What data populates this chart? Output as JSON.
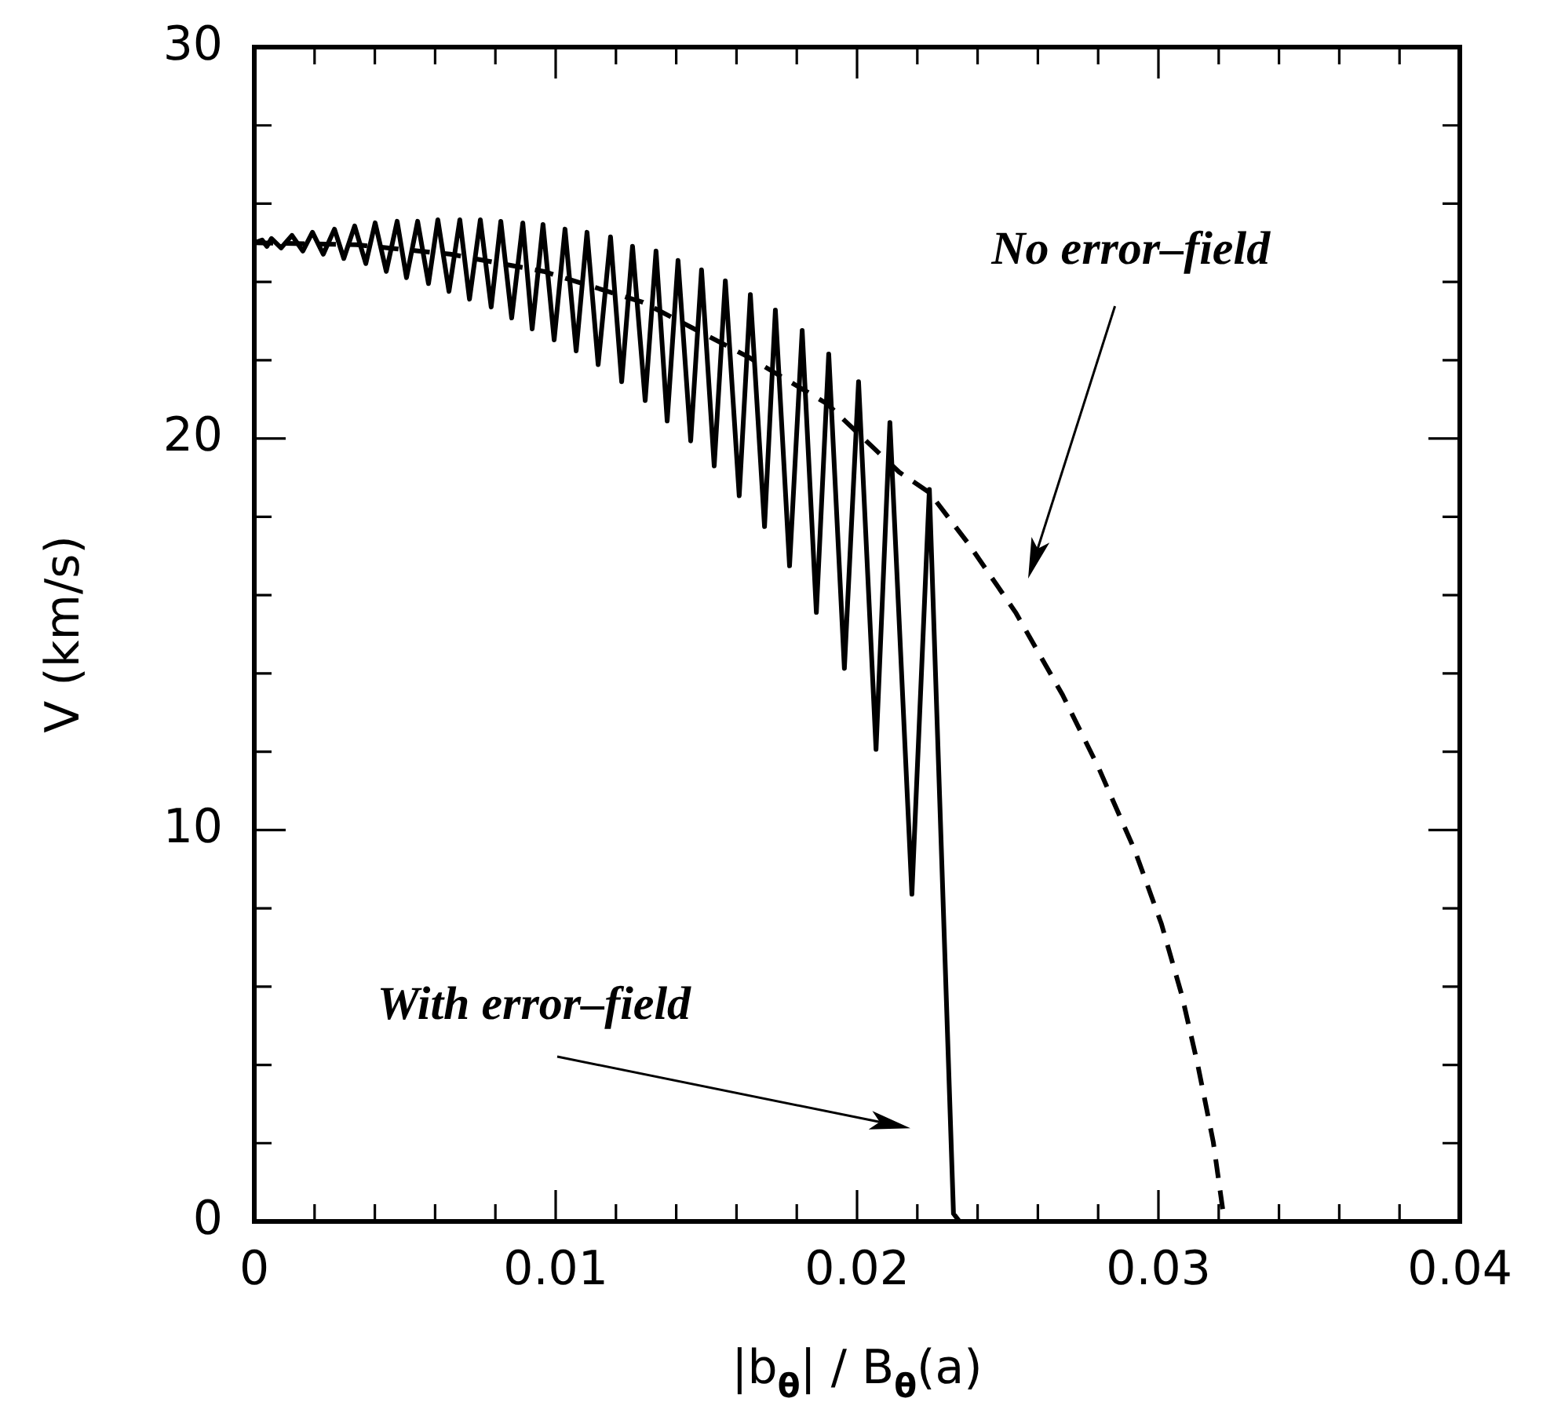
{
  "chart_data": {
    "type": "line",
    "xlabel": "|b$_{θ}$| / B$_{θ}$(a)",
    "ylabel": "V (km/s)",
    "xlim": [
      0,
      0.04
    ],
    "ylim": [
      0,
      30
    ],
    "xticks": [
      0,
      {
        "value": 0.002,
        "label": null
      },
      {
        "value": 0.004,
        "label": null
      },
      {
        "value": 0.006,
        "label": null
      },
      {
        "value": 0.008,
        "label": null
      },
      0.01,
      {
        "value": 0.012,
        "label": null
      },
      {
        "value": 0.014,
        "label": null
      },
      {
        "value": 0.016,
        "label": null
      },
      {
        "value": 0.018,
        "label": null
      },
      0.02,
      {
        "value": 0.022,
        "label": null
      },
      {
        "value": 0.024,
        "label": null
      },
      {
        "value": 0.026,
        "label": null
      },
      {
        "value": 0.028,
        "label": null
      },
      0.03,
      {
        "value": 0.032,
        "label": null
      },
      {
        "value": 0.034,
        "label": null
      },
      {
        "value": 0.036,
        "label": null
      },
      {
        "value": 0.038,
        "label": null
      },
      0.04
    ],
    "yticks": [
      0,
      {
        "value": 2,
        "label": null
      },
      {
        "value": 4,
        "label": null
      },
      {
        "value": 6,
        "label": null
      },
      {
        "value": 8,
        "label": null
      },
      10,
      {
        "value": 12,
        "label": null
      },
      {
        "value": 14,
        "label": null
      },
      {
        "value": 16,
        "label": null
      },
      {
        "value": 18,
        "label": null
      },
      20,
      {
        "value": 22,
        "label": null
      },
      {
        "value": 24,
        "label": null
      },
      {
        "value": 26,
        "label": null
      },
      {
        "value": 28,
        "label": null
      },
      30
    ],
    "grid": false,
    "legend": false,
    "marker": "none",
    "series": [
      {
        "color": "#000000",
        "line_style": "solid",
        "x": [
          0,
          0.00026,
          0.00042,
          0.00057,
          0.00089,
          0.00125,
          0.00161,
          0.00193,
          0.00229,
          0.00266,
          0.00297,
          0.00333,
          0.0037,
          0.00401,
          0.00438,
          0.00474,
          0.00505,
          0.00542,
          0.00578,
          0.00609,
          0.00646,
          0.00682,
          0.00714,
          0.0075,
          0.00786,
          0.00818,
          0.00854,
          0.00891,
          0.00922,
          0.00958,
          0.00995,
          0.01031,
          0.01068,
          0.01104,
          0.01141,
          0.01182,
          0.01219,
          0.01255,
          0.01297,
          0.01333,
          0.0137,
          0.01406,
          0.01448,
          0.01484,
          0.01526,
          0.01563,
          0.01609,
          0.01646,
          0.01693,
          0.01729,
          0.01776,
          0.01818,
          0.01865,
          0.01906,
          0.01958,
          0.02005,
          0.02063,
          0.02109,
          0.02182,
          0.0224,
          0.0232,
          0.0234,
          0.024
        ],
        "values": [
          25,
          25.07,
          24.91,
          25.11,
          24.87,
          25.19,
          24.79,
          25.27,
          24.71,
          25.35,
          24.6,
          25.43,
          24.47,
          25.51,
          24.27,
          25.55,
          24.11,
          25.55,
          23.96,
          25.59,
          23.76,
          25.59,
          23.56,
          25.59,
          23.36,
          25.55,
          23.08,
          25.51,
          22.8,
          25.47,
          22.52,
          25.35,
          22.24,
          25.27,
          21.89,
          25.15,
          21.45,
          24.91,
          20.97,
          24.79,
          20.45,
          24.55,
          19.94,
          24.31,
          19.3,
          24.03,
          18.54,
          23.68,
          17.75,
          23.28,
          16.75,
          22.76,
          15.56,
          22.16,
          14.13,
          21.45,
          12.06,
          20.41,
          8.36,
          18.7,
          0.2,
          0,
          0
        ]
      },
      {
        "color": "#000000",
        "line_style": "dashed",
        "x": [
          0,
          0.0034,
          0.0065,
          0.0096,
          0.0129,
          0.0164,
          0.019,
          0.0214,
          0.0224,
          0.0237,
          0.02526,
          0.02682,
          0.02802,
          0.02922,
          0.0301,
          0.03078,
          0.0313,
          0.03182,
          0.03219
        ],
        "values": [
          25,
          24.95,
          24.71,
          24.27,
          23.48,
          22.08,
          20.89,
          19.14,
          18.62,
          17.31,
          15.56,
          13.45,
          11.58,
          9.47,
          7.6,
          5.77,
          4.02,
          2.03,
          0
        ]
      }
    ],
    "annotations": [
      "No error–field",
      "With error–field"
    ]
  }
}
